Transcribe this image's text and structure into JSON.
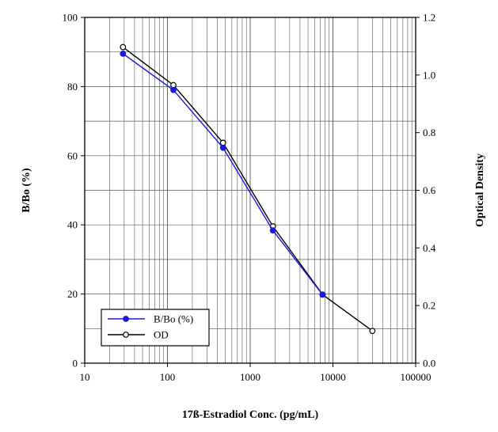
{
  "chart_data": {
    "type": "line",
    "xlabel": "17ß-Estradiol Conc. (pg/mL)",
    "ylabel_left": "B/Bo (%)",
    "ylabel_right": "Optical Density",
    "x_scale": "log",
    "xlim": [
      10,
      100000
    ],
    "ylim_left": [
      0,
      100
    ],
    "ylim_right": [
      0.0,
      1.2
    ],
    "grid": true,
    "x_ticks": [
      "10",
      "100",
      "1000",
      "10000",
      "100000"
    ],
    "y_left_ticks": [
      "0",
      "20",
      "40",
      "60",
      "80",
      "100"
    ],
    "y_right_ticks": [
      "0.0",
      "0.2",
      "0.4",
      "0.6",
      "0.8",
      "1.0",
      "1.2"
    ],
    "legend_position": "bottom-left",
    "series": [
      {
        "name": "B/Bo (%)",
        "axis": "left",
        "color": "#1a1adb",
        "marker": "filled-circle",
        "x": [
          29,
          118,
          470,
          1880,
          7500
        ],
        "y": [
          89.5,
          79.0,
          62.3,
          38.4,
          19.8
        ]
      },
      {
        "name": "OD",
        "axis": "right",
        "color": "#000000",
        "marker": "open-circle",
        "x": [
          29,
          118,
          470,
          1880,
          7500,
          30000
        ],
        "y": [
          1.097,
          0.965,
          0.765,
          0.475,
          0.238,
          0.112
        ]
      }
    ]
  }
}
